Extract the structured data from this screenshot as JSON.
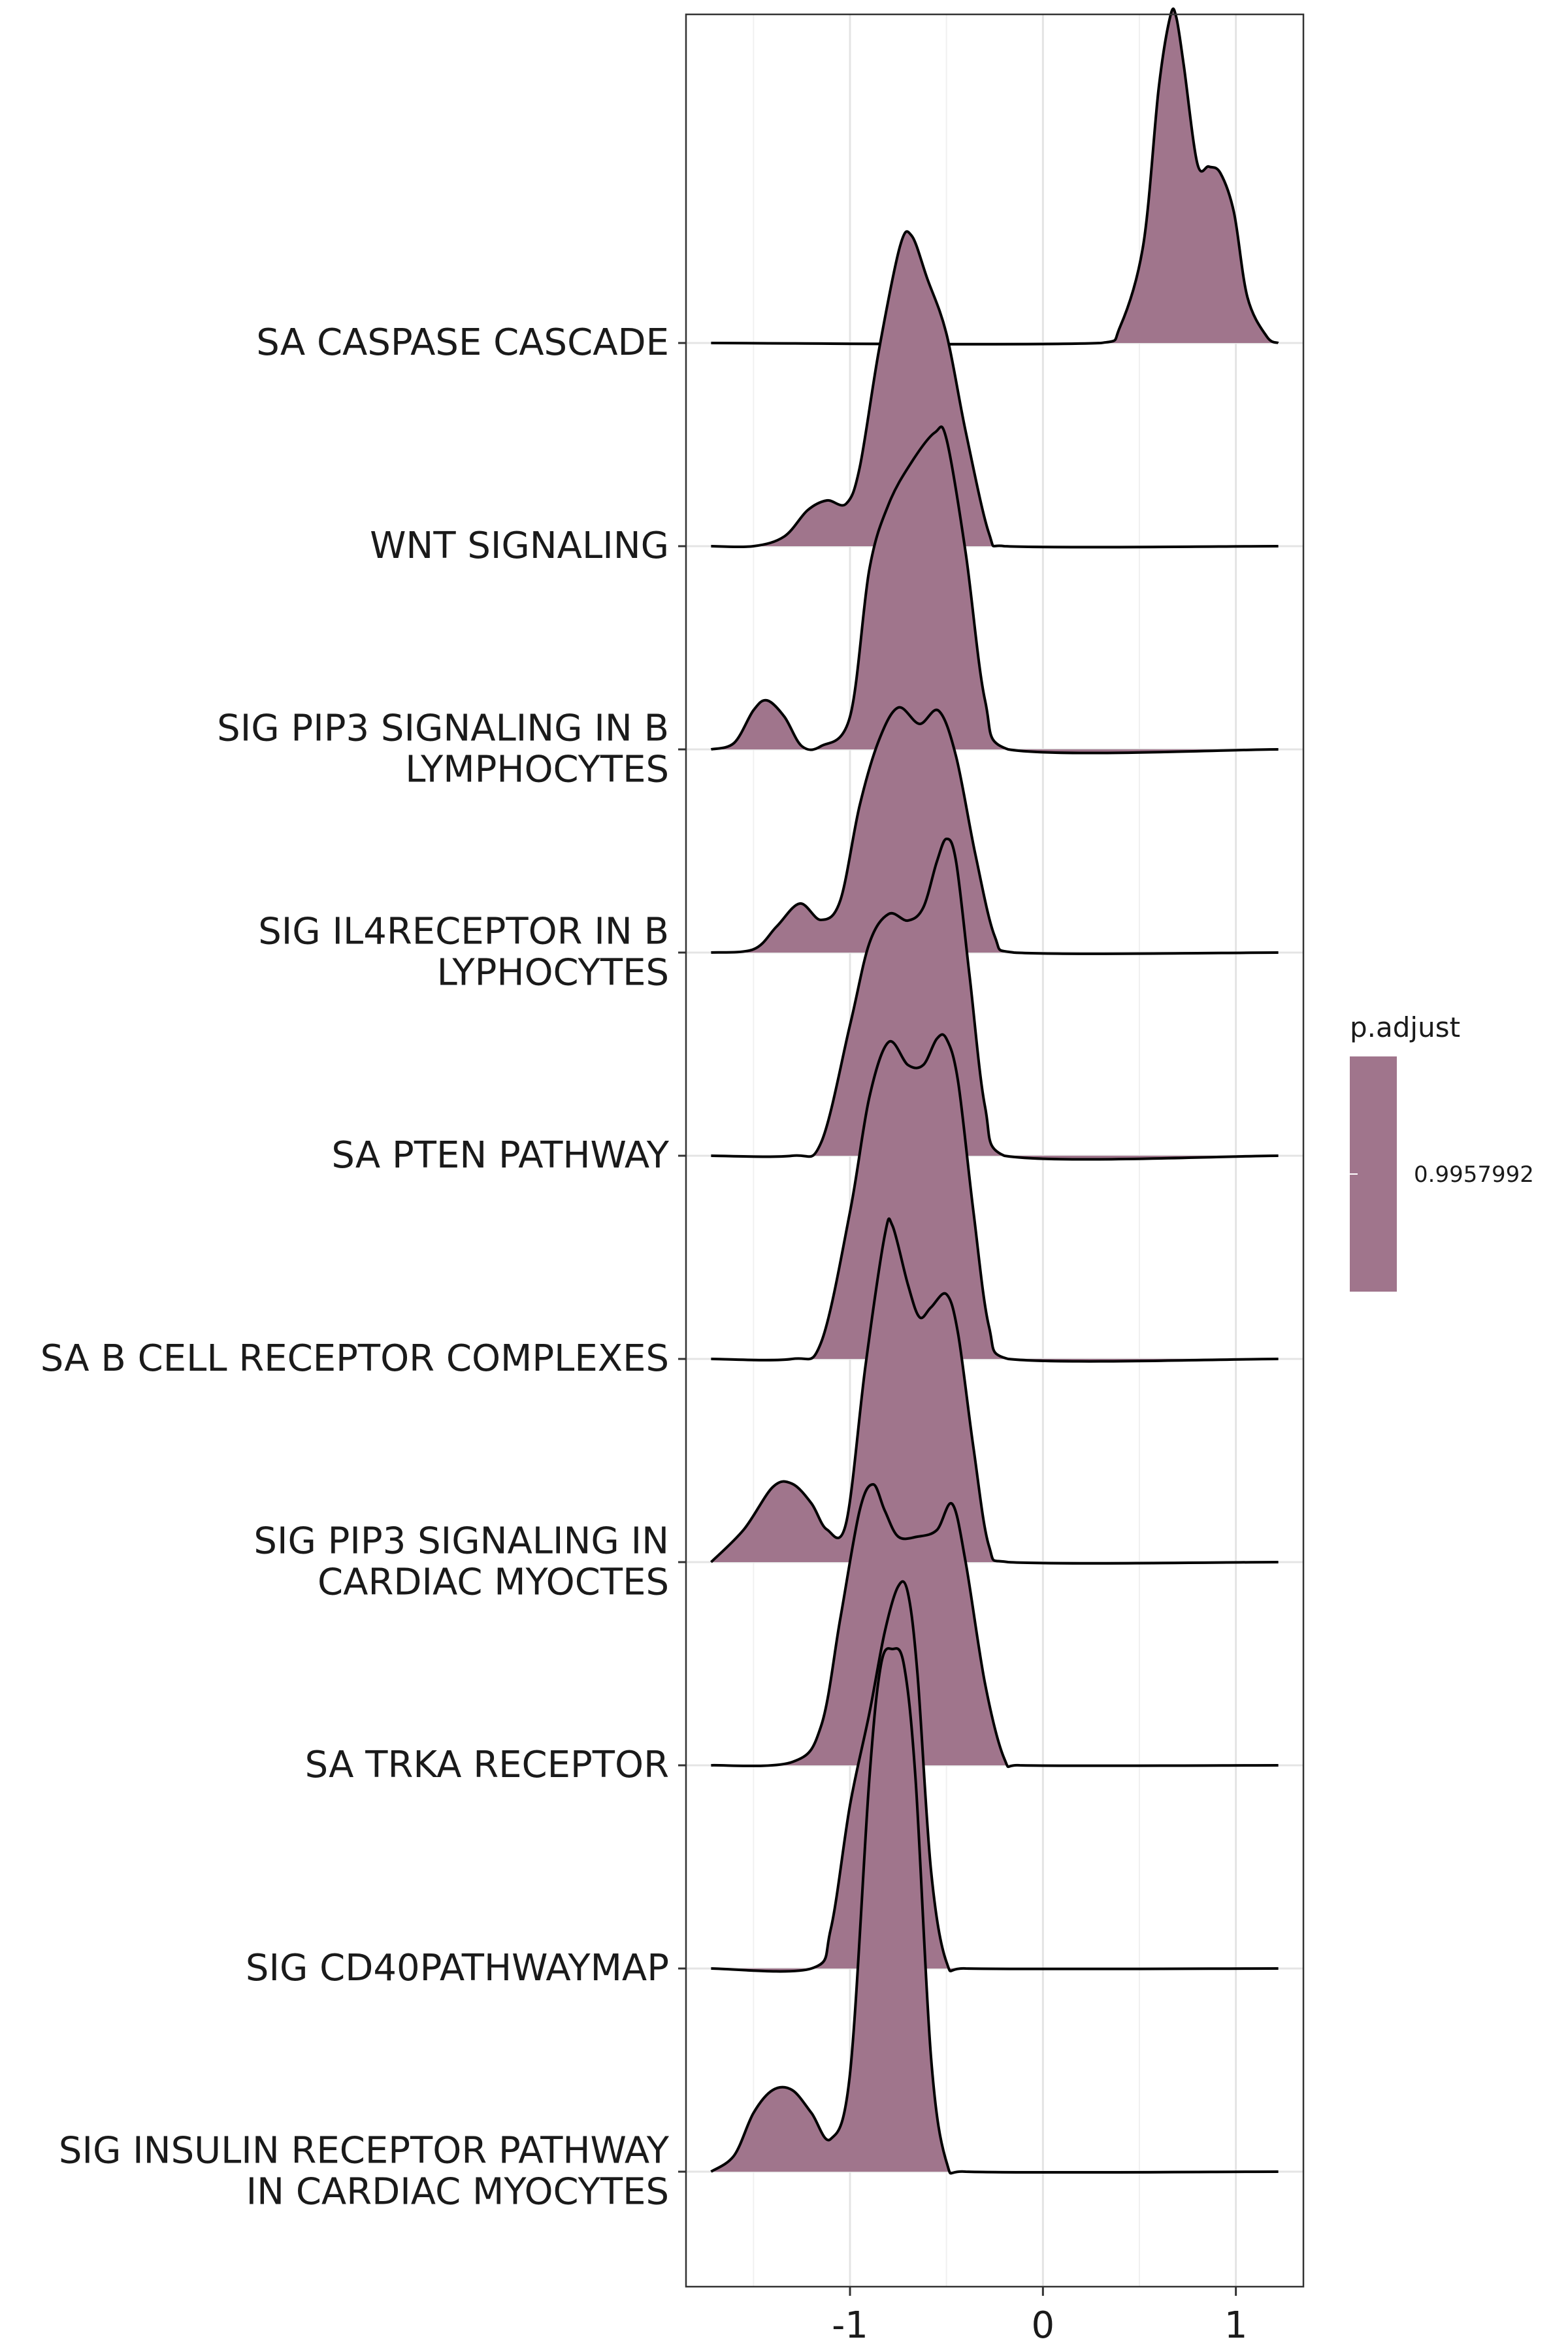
{
  "chart_data": {
    "type": "ridgeline",
    "title": "",
    "xlabel": "",
    "ylabel": "",
    "xlim": [
      -1.85,
      1.35
    ],
    "xticks": [
      -1,
      0,
      1
    ],
    "xtick_labels": [
      "-1",
      "0",
      "1"
    ],
    "grid": true,
    "fill_color": "#a0758c",
    "line_color": "#000000",
    "legend": {
      "title": "p.adjust",
      "values": [
        "0.9957992"
      ],
      "position": "right"
    },
    "series": [
      {
        "label": "SA CASPASE CASCADE",
        "x": [
          -1.72,
          0.3,
          0.4,
          0.52,
          0.6,
          0.66,
          0.69,
          0.73,
          0.8,
          0.86,
          0.92,
          0.99,
          1.06,
          1.16,
          1.22
        ],
        "density": [
          0,
          0,
          0.05,
          0.3,
          0.78,
          1.0,
          1.0,
          0.85,
          0.55,
          0.54,
          0.52,
          0.4,
          0.14,
          0.02,
          0
        ]
      },
      {
        "label": "WNT SIGNALING",
        "x": [
          -1.72,
          -1.5,
          -1.34,
          -1.22,
          -1.12,
          -1.02,
          -0.95,
          -0.85,
          -0.74,
          -0.68,
          -0.6,
          -0.5,
          -0.4,
          -0.28,
          -0.2,
          1.22
        ],
        "density": [
          0,
          0,
          0.03,
          0.11,
          0.14,
          0.13,
          0.24,
          0.6,
          0.92,
          0.95,
          0.82,
          0.65,
          0.35,
          0.04,
          0,
          0
        ]
      },
      {
        "label": "SIG PIP3 SIGNALING IN B\nLYMPHOCYTES",
        "x": [
          -1.72,
          -1.6,
          -1.5,
          -1.43,
          -1.34,
          -1.25,
          -1.15,
          -1.0,
          -0.9,
          -0.8,
          -0.68,
          -0.56,
          -0.5,
          -0.4,
          -0.3,
          -0.18,
          1.22
        ],
        "density": [
          0,
          0.02,
          0.12,
          0.15,
          0.1,
          0.01,
          0.01,
          0.1,
          0.55,
          0.75,
          0.88,
          0.97,
          0.95,
          0.6,
          0.15,
          0,
          0
        ]
      },
      {
        "label": "SIG IL4RECEPTOR IN B\nLYPHOCYTES",
        "x": [
          -1.72,
          -1.5,
          -1.38,
          -1.26,
          -1.15,
          -1.05,
          -0.95,
          -0.85,
          -0.75,
          -0.64,
          -0.54,
          -0.45,
          -0.35,
          -0.25,
          -0.15,
          1.22
        ],
        "density": [
          0,
          0.01,
          0.08,
          0.15,
          0.1,
          0.16,
          0.45,
          0.65,
          0.75,
          0.7,
          0.74,
          0.6,
          0.3,
          0.05,
          0,
          0
        ]
      },
      {
        "label": "SA PTEN PATHWAY",
        "x": [
          -1.72,
          -1.3,
          -1.15,
          -1.0,
          -0.9,
          -0.8,
          -0.7,
          -0.62,
          -0.55,
          -0.5,
          -0.45,
          -0.38,
          -0.3,
          -0.2,
          1.22
        ],
        "density": [
          0,
          0,
          0.04,
          0.4,
          0.65,
          0.74,
          0.72,
          0.76,
          0.9,
          0.97,
          0.9,
          0.55,
          0.15,
          0,
          0
        ]
      },
      {
        "label": "SA B CELL RECEPTOR COMPLEXES",
        "x": [
          -1.72,
          -1.3,
          -1.15,
          -1.0,
          -0.9,
          -0.8,
          -0.7,
          -0.62,
          -0.55,
          -0.5,
          -0.44,
          -0.36,
          -0.28,
          -0.18,
          1.22
        ],
        "density": [
          0,
          0,
          0.05,
          0.45,
          0.8,
          0.97,
          0.9,
          0.9,
          0.98,
          0.98,
          0.85,
          0.45,
          0.1,
          0,
          0
        ]
      },
      {
        "label": "SIG PIP3 SIGNALING IN\nCARDIAC MYOCTES",
        "x": [
          -1.72,
          -1.55,
          -1.4,
          -1.3,
          -1.2,
          -1.12,
          -1.02,
          -0.92,
          -0.82,
          -0.78,
          -0.7,
          -0.64,
          -0.58,
          -0.5,
          -0.44,
          -0.36,
          -0.28,
          -0.18,
          1.22
        ],
        "density": [
          0,
          0.1,
          0.23,
          0.24,
          0.18,
          0.1,
          0.12,
          0.6,
          1.0,
          1.03,
          0.85,
          0.75,
          0.78,
          0.82,
          0.7,
          0.35,
          0.05,
          0,
          0
        ]
      },
      {
        "label": "SA TRKA RECEPTOR",
        "x": [
          -1.72,
          -1.3,
          -1.15,
          -1.05,
          -0.95,
          -0.88,
          -0.82,
          -0.75,
          -0.65,
          -0.55,
          -0.47,
          -0.4,
          -0.3,
          -0.2,
          -0.12,
          1.22
        ],
        "density": [
          0,
          0.01,
          0.12,
          0.45,
          0.78,
          0.86,
          0.78,
          0.7,
          0.7,
          0.72,
          0.8,
          0.62,
          0.25,
          0.02,
          0,
          0
        ]
      },
      {
        "label": "SIG CD40PATHWAYMAP",
        "x": [
          -1.72,
          -1.2,
          -1.1,
          -1.0,
          -0.9,
          -0.82,
          -0.75,
          -0.7,
          -0.65,
          -0.58,
          -0.5,
          -0.4,
          1.22
        ],
        "density": [
          0,
          0,
          0.12,
          0.5,
          0.78,
          1.03,
          1.17,
          1.15,
          0.9,
          0.3,
          0.02,
          0,
          0
        ]
      },
      {
        "label": "SIG INSULIN RECEPTOR PATHWAY\nIN CARDIAC MYOCYTES",
        "x": [
          -1.72,
          -1.6,
          -1.5,
          -1.4,
          -1.3,
          -1.2,
          -1.1,
          -1.0,
          -0.9,
          -0.84,
          -0.78,
          -0.72,
          -0.66,
          -0.58,
          -0.5,
          -0.4,
          1.22
        ],
        "density": [
          0,
          0.05,
          0.18,
          0.25,
          0.25,
          0.18,
          0.1,
          0.3,
          1.2,
          1.55,
          1.6,
          1.55,
          1.2,
          0.35,
          0.03,
          0,
          0
        ]
      }
    ]
  }
}
